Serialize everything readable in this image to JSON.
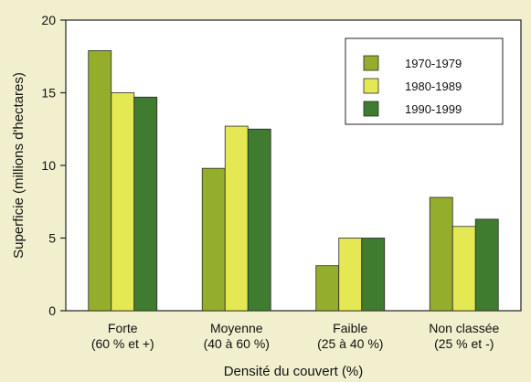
{
  "chart_data": {
    "type": "bar",
    "title": "",
    "xlabel": "Densité du couvert (%)",
    "ylabel": "Superficie (millions d'hectares)",
    "ylim": [
      0,
      20
    ],
    "yticks": [
      0,
      5,
      10,
      15,
      20
    ],
    "grid": false,
    "legend_position": "top-right",
    "categories": [
      {
        "name": "Forte",
        "sub": "(60 % et +)"
      },
      {
        "name": "Moyenne",
        "sub": "(40 à 60 %)"
      },
      {
        "name": "Faible",
        "sub": "(25 à 40 %)"
      },
      {
        "name": "Non classée",
        "sub": "(25 % et -)"
      }
    ],
    "series": [
      {
        "name": "1970-1979",
        "color": "#95ad2c",
        "values": [
          17.9,
          9.8,
          3.1,
          7.8
        ]
      },
      {
        "name": "1980-1989",
        "color": "#e4e852",
        "values": [
          15.0,
          12.7,
          5.0,
          5.8
        ]
      },
      {
        "name": "1990-1999",
        "color": "#3f7c2f",
        "values": [
          14.7,
          12.5,
          5.0,
          6.3
        ]
      }
    ]
  }
}
